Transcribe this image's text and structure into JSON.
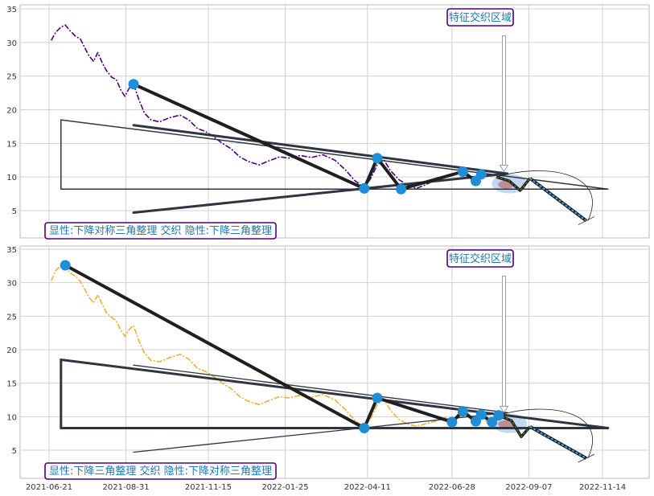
{
  "colors": {
    "grid": "#d0d0d0",
    "panel_border": "#bbbbbb",
    "series_top": "#4b0082",
    "series_bottom": "#f0b030",
    "pattern_line": "#1f1f1f",
    "trend_line": "#2f3540",
    "marker": "#1e8fd6",
    "callout_border": "#4b0082",
    "callout_text": "#1f77b4",
    "highlight": "#a8c8e8",
    "projection_zig": "#556b2f",
    "projection_drop": "#4aa0e0"
  },
  "chart_data": [
    {
      "type": "line",
      "panel": "top",
      "ylim": [
        2,
        35.5
      ],
      "yticks": [
        5,
        10,
        15,
        20,
        25,
        30,
        35
      ],
      "x_tick_labels": [
        "2021-06-21",
        "2021-08-31",
        "2021-11-15",
        "2022-01-25",
        "2022-04-11",
        "2022-06-28",
        "2022-09-07",
        "2022-11-14"
      ],
      "series": [
        {
          "values": [
            [
              "2021-06-23",
              30.3
            ],
            [
              "2021-06-27",
              31.5
            ],
            [
              "2021-07-02",
              32.3
            ],
            [
              "2021-07-06",
              32.6
            ],
            [
              "2021-07-10",
              31.8
            ],
            [
              "2021-07-15",
              31.0
            ],
            [
              "2021-07-20",
              30.5
            ],
            [
              "2021-07-24",
              29.2
            ],
            [
              "2021-07-28",
              28.0
            ],
            [
              "2021-08-01",
              27.2
            ],
            [
              "2021-08-05",
              28.5
            ],
            [
              "2021-08-09",
              27.0
            ],
            [
              "2021-08-13",
              25.8
            ],
            [
              "2021-08-18",
              24.8
            ],
            [
              "2021-08-22",
              24.5
            ],
            [
              "2021-08-26",
              23.0
            ],
            [
              "2021-08-30",
              22.0
            ],
            [
              "2021-09-03",
              23.2
            ],
            [
              "2021-09-07",
              23.8
            ],
            [
              "2021-09-12",
              21.5
            ],
            [
              "2021-09-17",
              19.5
            ],
            [
              "2021-09-23",
              18.5
            ],
            [
              "2021-10-01",
              18.2
            ],
            [
              "2021-10-10",
              18.8
            ],
            [
              "2021-10-20",
              19.2
            ],
            [
              "2021-10-28",
              18.5
            ],
            [
              "2021-11-05",
              17.2
            ],
            [
              "2021-11-12",
              16.8
            ],
            [
              "2021-11-20",
              16.0
            ],
            [
              "2021-11-28",
              15.0
            ],
            [
              "2021-12-06",
              14.2
            ],
            [
              "2021-12-14",
              13.0
            ],
            [
              "2021-12-22",
              12.3
            ],
            [
              "2022-01-01",
              11.8
            ],
            [
              "2022-01-10",
              12.4
            ],
            [
              "2022-01-20",
              13.0
            ],
            [
              "2022-01-28",
              12.8
            ],
            [
              "2022-02-08",
              13.2
            ],
            [
              "2022-02-18",
              12.9
            ],
            [
              "2022-03-01",
              13.3
            ],
            [
              "2022-03-12",
              12.5
            ],
            [
              "2022-03-22",
              11.0
            ],
            [
              "2022-03-30",
              9.5
            ],
            [
              "2022-04-05",
              8.8
            ],
            [
              "2022-04-08",
              8.3
            ],
            [
              "2022-04-14",
              9.8
            ],
            [
              "2022-04-20",
              11.8
            ],
            [
              "2022-04-26",
              12.6
            ],
            [
              "2022-05-02",
              11.0
            ],
            [
              "2022-05-10",
              9.6
            ],
            [
              "2022-05-18",
              8.8
            ],
            [
              "2022-05-26",
              8.3
            ],
            [
              "2022-06-03",
              8.8
            ],
            [
              "2022-06-12",
              9.5
            ],
            [
              "2022-06-22",
              10.2
            ],
            [
              "2022-07-01",
              10.6
            ],
            [
              "2022-07-08",
              10.8
            ],
            [
              "2022-07-14",
              9.9
            ],
            [
              "2022-07-20",
              9.4
            ],
            [
              "2022-07-25",
              9.8
            ],
            [
              "2022-07-30",
              10.5
            ]
          ]
        }
      ],
      "markers": [
        [
          "2021-09-07",
          23.8
        ],
        [
          "2022-04-08",
          8.3
        ],
        [
          "2022-04-20",
          12.8
        ],
        [
          "2022-05-12",
          8.2
        ],
        [
          "2022-07-08",
          10.8
        ],
        [
          "2022-07-20",
          9.4
        ],
        [
          "2022-07-25",
          10.4
        ]
      ],
      "pattern_path": [
        [
          "2021-09-07",
          23.8
        ],
        [
          "2022-04-08",
          8.3
        ],
        [
          "2022-04-20",
          12.8
        ],
        [
          "2022-05-12",
          8.2
        ],
        [
          "2022-07-08",
          10.8
        ],
        [
          "2022-07-20",
          9.4
        ],
        [
          "2022-07-25",
          10.4
        ]
      ],
      "trend_lines": [
        {
          "points": [
            [
              "2021-09-07",
              17.7
            ],
            [
              "2022-08-18",
              10.5
            ]
          ],
          "weight": 3
        },
        {
          "points": [
            [
              "2021-09-07",
              4.7
            ],
            [
              "2022-08-18",
              10.5
            ]
          ],
          "weight": 3
        },
        {
          "points": [
            [
              "2021-07-02",
              18.5
            ],
            [
              "2022-11-19",
              8.2
            ]
          ],
          "weight": 1.5
        },
        {
          "points": [
            [
              "2021-07-02",
              8.2
            ],
            [
              "2022-11-19",
              8.2
            ]
          ],
          "weight": 1.5
        },
        {
          "points": [
            [
              "2021-07-02",
              18.5
            ],
            [
              "2021-07-02",
              8.2
            ]
          ],
          "weight": 1.5
        }
      ],
      "projection": {
        "zigzag": [
          [
            "2022-08-08",
            10.0
          ],
          [
            "2022-08-20",
            9.4
          ],
          [
            "2022-08-30",
            8.0
          ],
          [
            "2022-09-08",
            9.8
          ]
        ],
        "drop": [
          [
            "2022-09-08",
            9.8
          ],
          [
            "2022-10-30",
            3.5
          ]
        ],
        "highlight_center": [
          "2022-08-20",
          9.0
        ],
        "arrow_x": "2022-08-15",
        "arrow_from_y": 31.0,
        "arrow_to_y": 10.8
      },
      "callouts": {
        "feature_zone": "特征交织区域",
        "summary": "显性:下降对称三角整理 交织 隐性:下降三角整理"
      }
    },
    {
      "type": "line",
      "panel": "bottom",
      "ylim": [
        2,
        35.5
      ],
      "yticks": [
        5,
        10,
        15,
        20,
        25,
        30,
        35
      ],
      "x_tick_labels": [
        "2021-06-21",
        "2021-08-31",
        "2021-11-15",
        "2022-01-25",
        "2022-04-11",
        "2022-06-28",
        "2022-09-07",
        "2022-11-14"
      ],
      "series": [
        {
          "values": [
            [
              "2021-06-23",
              30.3
            ],
            [
              "2021-06-27",
              31.8
            ],
            [
              "2021-07-02",
              32.6
            ],
            [
              "2021-07-06",
              32.4
            ],
            [
              "2021-07-10",
              31.5
            ],
            [
              "2021-07-15",
              31.0
            ],
            [
              "2021-07-20",
              30.2
            ],
            [
              "2021-07-24",
              29.0
            ],
            [
              "2021-07-28",
              27.8
            ],
            [
              "2021-08-01",
              27.0
            ],
            [
              "2021-08-05",
              28.2
            ],
            [
              "2021-08-09",
              26.8
            ],
            [
              "2021-08-13",
              25.5
            ],
            [
              "2021-08-18",
              24.8
            ],
            [
              "2021-08-22",
              24.3
            ],
            [
              "2021-08-26",
              23.0
            ],
            [
              "2021-08-30",
              22.0
            ],
            [
              "2021-09-03",
              23.0
            ],
            [
              "2021-09-07",
              23.6
            ],
            [
              "2021-09-12",
              21.3
            ],
            [
              "2021-09-17",
              19.5
            ],
            [
              "2021-09-23",
              18.4
            ],
            [
              "2021-10-01",
              18.2
            ],
            [
              "2021-10-10",
              18.8
            ],
            [
              "2021-10-20",
              19.3
            ],
            [
              "2021-10-28",
              18.6
            ],
            [
              "2021-11-05",
              17.2
            ],
            [
              "2021-11-12",
              16.8
            ],
            [
              "2021-11-20",
              16.0
            ],
            [
              "2021-11-28",
              15.0
            ],
            [
              "2021-12-06",
              14.2
            ],
            [
              "2021-12-14",
              13.0
            ],
            [
              "2021-12-22",
              12.3
            ],
            [
              "2022-01-01",
              11.8
            ],
            [
              "2022-01-10",
              12.4
            ],
            [
              "2022-01-20",
              13.0
            ],
            [
              "2022-01-28",
              12.8
            ],
            [
              "2022-02-08",
              13.2
            ],
            [
              "2022-02-18",
              12.9
            ],
            [
              "2022-03-01",
              13.3
            ],
            [
              "2022-03-12",
              12.5
            ],
            [
              "2022-03-22",
              11.0
            ],
            [
              "2022-03-30",
              9.5
            ],
            [
              "2022-04-05",
              8.8
            ],
            [
              "2022-04-08",
              8.3
            ],
            [
              "2022-04-14",
              9.8
            ],
            [
              "2022-04-20",
              11.8
            ],
            [
              "2022-04-26",
              12.6
            ],
            [
              "2022-05-02",
              11.0
            ],
            [
              "2022-05-10",
              9.6
            ],
            [
              "2022-05-18",
              8.9
            ],
            [
              "2022-05-26",
              8.6
            ],
            [
              "2022-06-03",
              8.9
            ],
            [
              "2022-06-12",
              9.3
            ],
            [
              "2022-06-22",
              9.9
            ],
            [
              "2022-06-28",
              9.2
            ],
            [
              "2022-07-03",
              10.2
            ],
            [
              "2022-07-08",
              10.8
            ],
            [
              "2022-07-14",
              9.9
            ],
            [
              "2022-07-20",
              9.3
            ],
            [
              "2022-07-25",
              10.2
            ],
            [
              "2022-07-30",
              9.2
            ]
          ]
        }
      ],
      "markers": [
        [
          "2021-07-06",
          32.6
        ],
        [
          "2022-04-08",
          8.3
        ],
        [
          "2022-04-20",
          12.8
        ],
        [
          "2022-06-28",
          9.2
        ],
        [
          "2022-07-08",
          10.8
        ],
        [
          "2022-07-20",
          9.3
        ],
        [
          "2022-07-25",
          10.3
        ],
        [
          "2022-08-04",
          9.2
        ],
        [
          "2022-08-10",
          10.2
        ]
      ],
      "pattern_path": [
        [
          "2021-07-06",
          32.6
        ],
        [
          "2022-04-08",
          8.3
        ],
        [
          "2022-04-20",
          12.8
        ],
        [
          "2022-06-28",
          9.2
        ],
        [
          "2022-07-08",
          10.8
        ],
        [
          "2022-07-20",
          9.3
        ],
        [
          "2022-07-25",
          10.3
        ],
        [
          "2022-08-04",
          9.2
        ],
        [
          "2022-08-10",
          10.2
        ]
      ],
      "trend_lines": [
        {
          "points": [
            [
              "2021-07-02",
              18.5
            ],
            [
              "2022-11-19",
              8.3
            ]
          ],
          "weight": 3
        },
        {
          "points": [
            [
              "2021-07-02",
              8.3
            ],
            [
              "2022-11-19",
              8.3
            ]
          ],
          "weight": 3
        },
        {
          "points": [
            [
              "2021-07-02",
              18.5
            ],
            [
              "2021-07-02",
              8.3
            ]
          ],
          "weight": 3
        },
        {
          "points": [
            [
              "2021-09-07",
              17.7
            ],
            [
              "2022-08-18",
              10.6
            ]
          ],
          "weight": 1.3
        },
        {
          "points": [
            [
              "2021-09-07",
              4.7
            ],
            [
              "2022-08-18",
              10.6
            ]
          ],
          "weight": 1.3
        }
      ],
      "projection": {
        "zigzag": [
          [
            "2022-08-10",
            10.2
          ],
          [
            "2022-08-22",
            9.4
          ],
          [
            "2022-08-31",
            7.0
          ],
          [
            "2022-09-08",
            8.5
          ]
        ],
        "drop": [
          [
            "2022-09-08",
            8.5
          ],
          [
            "2022-10-30",
            3.8
          ]
        ],
        "highlight_center": [
          "2022-08-20",
          9.0
        ],
        "arrow_x": "2022-08-15",
        "arrow_from_y": 31.0,
        "arrow_to_y": 10.6
      },
      "callouts": {
        "feature_zone": "特征交织区域",
        "summary": "显性:下降三角整理 交织 隐性:下降对称三角整理"
      }
    }
  ]
}
